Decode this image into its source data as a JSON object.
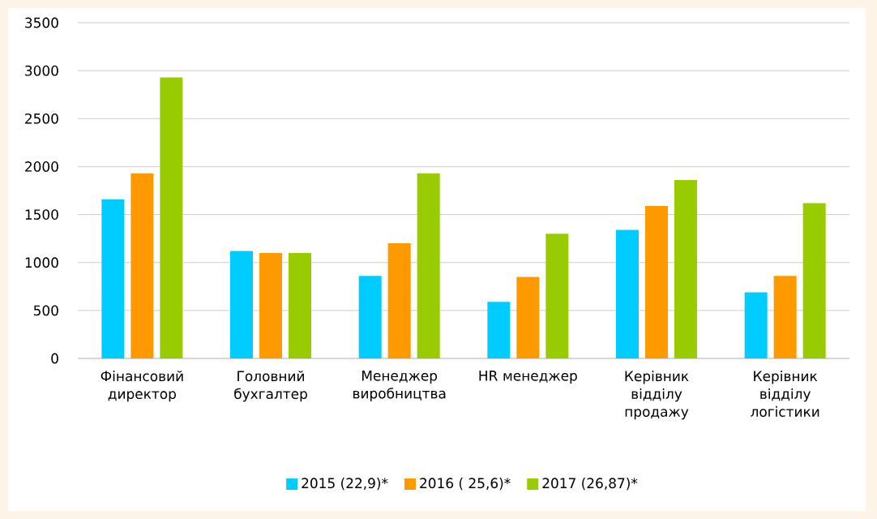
{
  "chart_data": {
    "type": "bar",
    "categories": [
      "Фінансовий директор",
      "Головний бухгалтер",
      "Менеджер виробництва",
      "HR менеджер",
      "Керівник відділу продажу",
      "Керівник відділу логістики"
    ],
    "series": [
      {
        "name": "2015 (22,9)*",
        "color": "#00ccff",
        "values": [
          1660,
          1120,
          860,
          590,
          1340,
          690
        ]
      },
      {
        "name": "2016 ( 25,6)*",
        "color": "#ff9900",
        "values": [
          1930,
          1100,
          1200,
          850,
          1590,
          860
        ]
      },
      {
        "name": "2017 (26,87)*",
        "color": "#99cc00",
        "values": [
          2930,
          1100,
          1930,
          1300,
          1860,
          1620
        ]
      }
    ],
    "ylim": [
      0,
      3500
    ],
    "yticks": [
      0,
      500,
      1000,
      1500,
      2000,
      2500,
      3000,
      3500
    ],
    "grid": "y",
    "legend": "bottom"
  }
}
